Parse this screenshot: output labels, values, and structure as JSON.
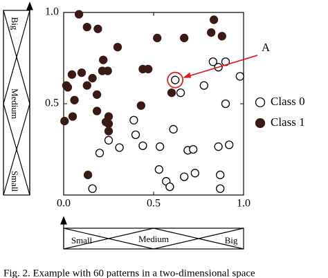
{
  "chart_data": {
    "type": "scatter",
    "xlim": [
      0,
      1
    ],
    "ylim": [
      0,
      1
    ],
    "xticks": [
      {
        "value": 0,
        "label": "0.0"
      },
      {
        "value": 0.5,
        "label": "0.5"
      },
      {
        "value": 1,
        "label": "1.0"
      }
    ],
    "yticks": [
      {
        "value": 0,
        "label": "0.0"
      },
      {
        "value": 0.5,
        "label": "0.5"
      },
      {
        "value": 1,
        "label": "1.0"
      }
    ],
    "series": [
      {
        "name": "Class 0",
        "marker": "open",
        "color": "#000000",
        "x": [
          0.62,
          0.65,
          0.78,
          0.83,
          0.86,
          0.9,
          0.98,
          0.61,
          0.39,
          0.4,
          0.44,
          0.31,
          0.2,
          0.535,
          0.69,
          0.72,
          0.86,
          0.92,
          0.53,
          0.57,
          0.59,
          0.67,
          0.73,
          0.87,
          0.87,
          0.16,
          0.9,
          0.25
        ],
        "values": [
          0.63,
          0.56,
          0.6,
          0.73,
          0.7,
          0.73,
          0.65,
          0.36,
          0.41,
          0.33,
          0.27,
          0.26,
          0.23,
          0.265,
          0.245,
          0.25,
          0.265,
          0.275,
          0.14,
          0.075,
          0.045,
          0.1,
          0.12,
          0.11,
          0.035,
          0.035,
          0.5,
          0.3
        ]
      },
      {
        "name": "Class 1",
        "marker": "filled",
        "color": "#3a1a14",
        "x": [
          0.085,
          0.13,
          0.19,
          0.3,
          0.22,
          0.215,
          0.245,
          0.046,
          0.1,
          0.015,
          0.023,
          0.13,
          0.16,
          0.185,
          0.05,
          0.005,
          0.185,
          0.235,
          0.25,
          0.25,
          0.25,
          0.44,
          0.47,
          0.52,
          0.67,
          0.835,
          0.82,
          0.88,
          0.6,
          0.135,
          0.43,
          0.06
        ],
        "values": [
          0.99,
          0.92,
          0.91,
          0.81,
          0.74,
          0.68,
          0.68,
          0.66,
          0.67,
          0.6,
          0.59,
          0.6,
          0.64,
          0.55,
          0.43,
          0.405,
          0.46,
          0.4,
          0.43,
          0.39,
          0.35,
          0.69,
          0.69,
          0.86,
          0.86,
          0.96,
          0.89,
          0.87,
          0.56,
          0.11,
          0.49,
          0.52
        ]
      }
    ],
    "annotation": "A"
  },
  "membership_functions": {
    "x_labels": [
      "Small",
      "Medium",
      "Big"
    ],
    "y_labels": [
      "Small",
      "Medium",
      "Big"
    ]
  },
  "caption": "Fig. 2. Example with 60 patterns in a two-dimensional space"
}
